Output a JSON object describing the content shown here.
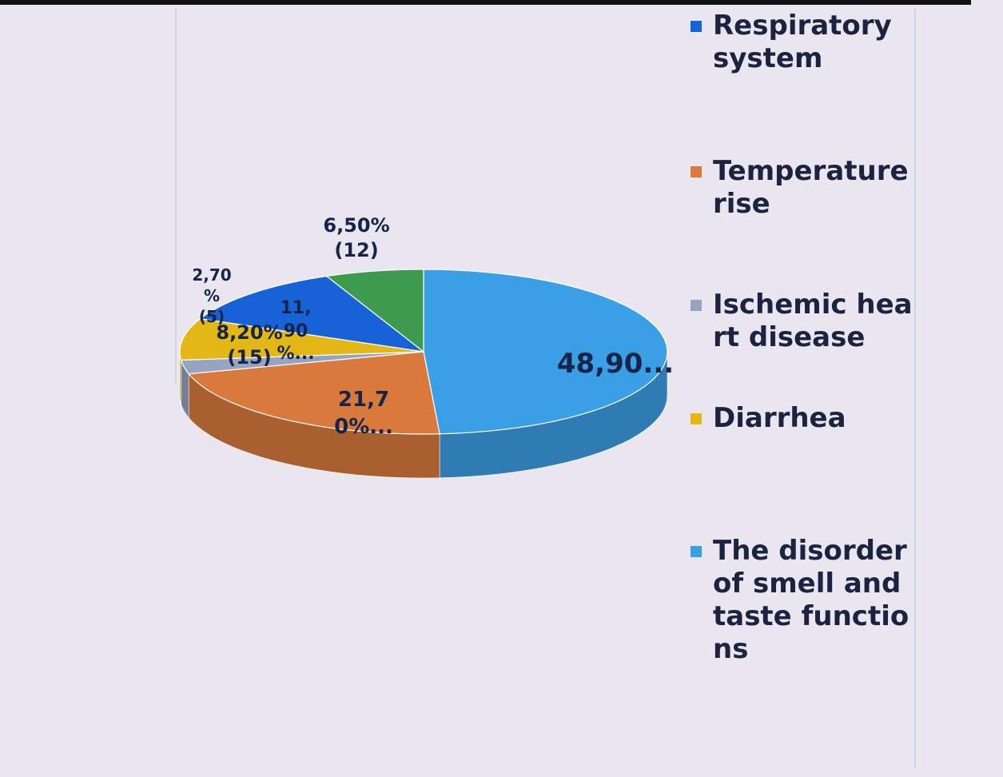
{
  "chart_data": {
    "type": "pie",
    "categories": [
      "Respiratory system",
      "Temperature rise",
      "Ischemic heart disease",
      "Diarrhea",
      "The disorder of smell and taste functions",
      null
    ],
    "values": [
      11.9,
      21.7,
      2.7,
      8.2,
      48.9,
      6.5
    ],
    "value_labels": [
      "11,\n90\n%...",
      "21,7\n0%...",
      "2,70\n%\n(5)",
      "8,20%\n(15)",
      "48,90...",
      "6,50%\n(12)"
    ],
    "colors": [
      "#1662d6",
      "#d97a3c",
      "#97a4bf",
      "#e3b716",
      "#3b9fe6",
      "#3e9a4f"
    ],
    "legend": "right"
  }
}
